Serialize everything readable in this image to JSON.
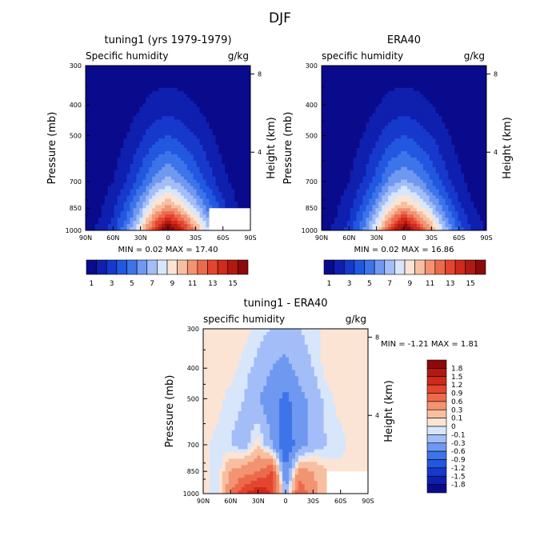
{
  "figure_title": "DJF",
  "chart_data": [
    {
      "type": "heatmap",
      "title": "tuning1 (yrs 1979-1979)",
      "subtitle_left": "Specific humidity",
      "subtitle_right": "g/kg",
      "xlabel": "",
      "ylabel": "Pressure (mb)",
      "y2label": "Height (km)",
      "x_ticks": [
        "90N",
        "60N",
        "30N",
        "0",
        "30S",
        "60S",
        "90S"
      ],
      "y_ticks": [
        "300",
        "400",
        "500",
        "700",
        "850",
        "1000"
      ],
      "y2_ticks": [
        "8",
        "4"
      ],
      "ylim": [
        1000,
        300
      ],
      "stats": "MIN =    0.02    MAX =   17.40",
      "min": 0.02,
      "max": 17.4,
      "colorbar_labels": [
        "1",
        "3",
        "5",
        "7",
        "9",
        "11",
        "13",
        "15"
      ],
      "colorbar_colors": [
        "#0a0a8c",
        "#0f1fae",
        "#1639cc",
        "#2257e0",
        "#3d74ea",
        "#6f98f1",
        "#a2bdf7",
        "#d8e6fb",
        "#fbe4d4",
        "#f7bfa1",
        "#f29372",
        "#ec6a4c",
        "#e4452f",
        "#cf2a1b",
        "#b01a10",
        "#8c0a0a"
      ],
      "field": {
        "lat": [
          90,
          75,
          60,
          45,
          30,
          15,
          0,
          -15,
          -30,
          -45,
          -60,
          -75,
          -90
        ],
        "lev": [
          300,
          400,
          500,
          700,
          850,
          1000
        ],
        "values": [
          [
            0.02,
            0.05,
            0.1,
            0.2,
            0.3,
            0.4,
            0.4,
            0.4,
            0.3,
            0.2,
            0.1,
            0.05,
            0.02
          ],
          [
            0.05,
            0.1,
            0.2,
            0.5,
            0.9,
            1.4,
            1.6,
            1.4,
            1.0,
            0.6,
            0.3,
            0.1,
            0.05
          ],
          [
            0.1,
            0.2,
            0.4,
            1.0,
            1.8,
            2.6,
            3.0,
            2.6,
            2.0,
            1.2,
            0.6,
            0.2,
            0.1
          ],
          [
            0.2,
            0.5,
            1.0,
            2.0,
            3.6,
            5.5,
            6.5,
            5.5,
            4.0,
            2.6,
            1.3,
            0.6,
            0.3
          ],
          [
            0.4,
            0.8,
            1.8,
            3.5,
            6.0,
            9.0,
            10.5,
            9.0,
            7.0,
            4.5,
            2.4,
            1.1,
            0.6
          ],
          [
            0.6,
            1.2,
            2.5,
            5.0,
            8.5,
            13.0,
            17.4,
            14.0,
            10.5,
            7.0,
            null,
            null,
            null
          ]
        ]
      }
    },
    {
      "type": "heatmap",
      "title": "ERA40",
      "subtitle_left": "specific humidity",
      "subtitle_right": "g/kg",
      "xlabel": "",
      "ylabel": "Pressure (mb)",
      "y2label": "Height (km)",
      "x_ticks": [
        "90N",
        "60N",
        "30N",
        "0",
        "30S",
        "60S",
        "90S"
      ],
      "y_ticks": [
        "300",
        "400",
        "500",
        "700",
        "850",
        "1000"
      ],
      "y2_ticks": [
        "8",
        "4"
      ],
      "ylim": [
        1000,
        300
      ],
      "stats": "MIN =    0.02    MAX =   16.86",
      "min": 0.02,
      "max": 16.86,
      "colorbar_labels": [
        "1",
        "3",
        "5",
        "7",
        "9",
        "11",
        "13",
        "15"
      ],
      "colorbar_colors": [
        "#0a0a8c",
        "#0f1fae",
        "#1639cc",
        "#2257e0",
        "#3d74ea",
        "#6f98f1",
        "#a2bdf7",
        "#d8e6fb",
        "#fbe4d4",
        "#f7bfa1",
        "#f29372",
        "#ec6a4c",
        "#e4452f",
        "#cf2a1b",
        "#b01a10",
        "#8c0a0a"
      ],
      "field": {
        "lat": [
          90,
          75,
          60,
          45,
          30,
          15,
          0,
          -15,
          -30,
          -45,
          -60,
          -75,
          -90
        ],
        "lev": [
          300,
          400,
          500,
          700,
          850,
          1000
        ],
        "values": [
          [
            0.02,
            0.05,
            0.1,
            0.2,
            0.3,
            0.4,
            0.4,
            0.4,
            0.3,
            0.2,
            0.1,
            0.05,
            0.02
          ],
          [
            0.05,
            0.1,
            0.2,
            0.5,
            0.9,
            1.4,
            1.6,
            1.4,
            1.0,
            0.6,
            0.3,
            0.1,
            0.05
          ],
          [
            0.1,
            0.2,
            0.4,
            1.0,
            1.8,
            2.6,
            3.0,
            2.6,
            2.0,
            1.2,
            0.6,
            0.2,
            0.1
          ],
          [
            0.2,
            0.5,
            1.0,
            2.0,
            3.5,
            5.4,
            6.3,
            5.4,
            4.0,
            2.5,
            1.3,
            0.6,
            0.3
          ],
          [
            0.4,
            0.8,
            1.7,
            3.4,
            5.8,
            8.7,
            10.2,
            8.7,
            6.8,
            4.4,
            2.3,
            1.1,
            0.6
          ],
          [
            0.6,
            1.2,
            2.4,
            4.9,
            8.3,
            12.6,
            16.86,
            13.6,
            10.2,
            6.8,
            3.8,
            1.8,
            0.8
          ]
        ]
      }
    },
    {
      "type": "heatmap",
      "title": "tuning1 - ERA40",
      "subtitle_left": "specific humidity",
      "subtitle_right": "g/kg",
      "xlabel": "",
      "ylabel": "Pressure (mb)",
      "y2label": "Height (km)",
      "x_ticks": [
        "90N",
        "60N",
        "30N",
        "0",
        "30S",
        "60S",
        "90S"
      ],
      "y_ticks": [
        "300",
        "400",
        "500",
        "700",
        "850",
        "1000"
      ],
      "y2_ticks": [
        "8",
        "4"
      ],
      "ylim": [
        1000,
        300
      ],
      "stats": "MIN =    -1.21    MAX =    1.81",
      "min": -1.21,
      "max": 1.81,
      "colorbar_labels": [
        "1.8",
        "1.5",
        "1.2",
        "0.9",
        "0.6",
        "0.3",
        "0.1",
        "0",
        "-0.1",
        "-0.3",
        "-0.6",
        "-0.9",
        "-1.2",
        "-1.5",
        "-1.8"
      ],
      "colorbar_colors": [
        "#8c0a0a",
        "#b01a10",
        "#cf2a1b",
        "#e4452f",
        "#ec6a4c",
        "#f29372",
        "#f7bfa1",
        "#fbe4d4",
        "#d8e6fb",
        "#a2bdf7",
        "#6f98f1",
        "#3d74ea",
        "#2257e0",
        "#1639cc",
        "#0f1fae",
        "#0a0a8c"
      ],
      "field": {
        "lat": [
          90,
          75,
          60,
          45,
          30,
          15,
          0,
          -15,
          -30,
          -45,
          -60,
          -75,
          -90
        ],
        "lev": [
          300,
          400,
          500,
          700,
          850,
          1000
        ],
        "values": [
          [
            0.05,
            0.05,
            0.05,
            0.05,
            -0.05,
            -0.1,
            -0.15,
            -0.1,
            -0.05,
            0.05,
            0.05,
            0.05,
            0.05
          ],
          [
            0.05,
            0.05,
            0.05,
            -0.05,
            -0.15,
            -0.3,
            -0.4,
            -0.2,
            -0.1,
            0.05,
            0.05,
            0.05,
            0.05
          ],
          [
            0.05,
            0.05,
            -0.05,
            -0.1,
            -0.3,
            -0.45,
            -0.7,
            -0.4,
            -0.2,
            -0.05,
            0.05,
            0.05,
            0.05
          ],
          [
            0.05,
            -0.05,
            -0.1,
            -0.2,
            0.1,
            -0.3,
            -0.9,
            -0.4,
            -0.2,
            -0.1,
            -0.05,
            0.05,
            0.05
          ],
          [
            0.1,
            -0.1,
            0.3,
            0.45,
            0.6,
            0.9,
            -0.6,
            0.4,
            0.3,
            0.1,
            0.05,
            0.05,
            0.05
          ],
          [
            0.05,
            -0.1,
            0.6,
            1.2,
            1.5,
            1.2,
            -0.3,
            0.9,
            0.4,
            0.1,
            null,
            null,
            null
          ]
        ]
      }
    }
  ]
}
